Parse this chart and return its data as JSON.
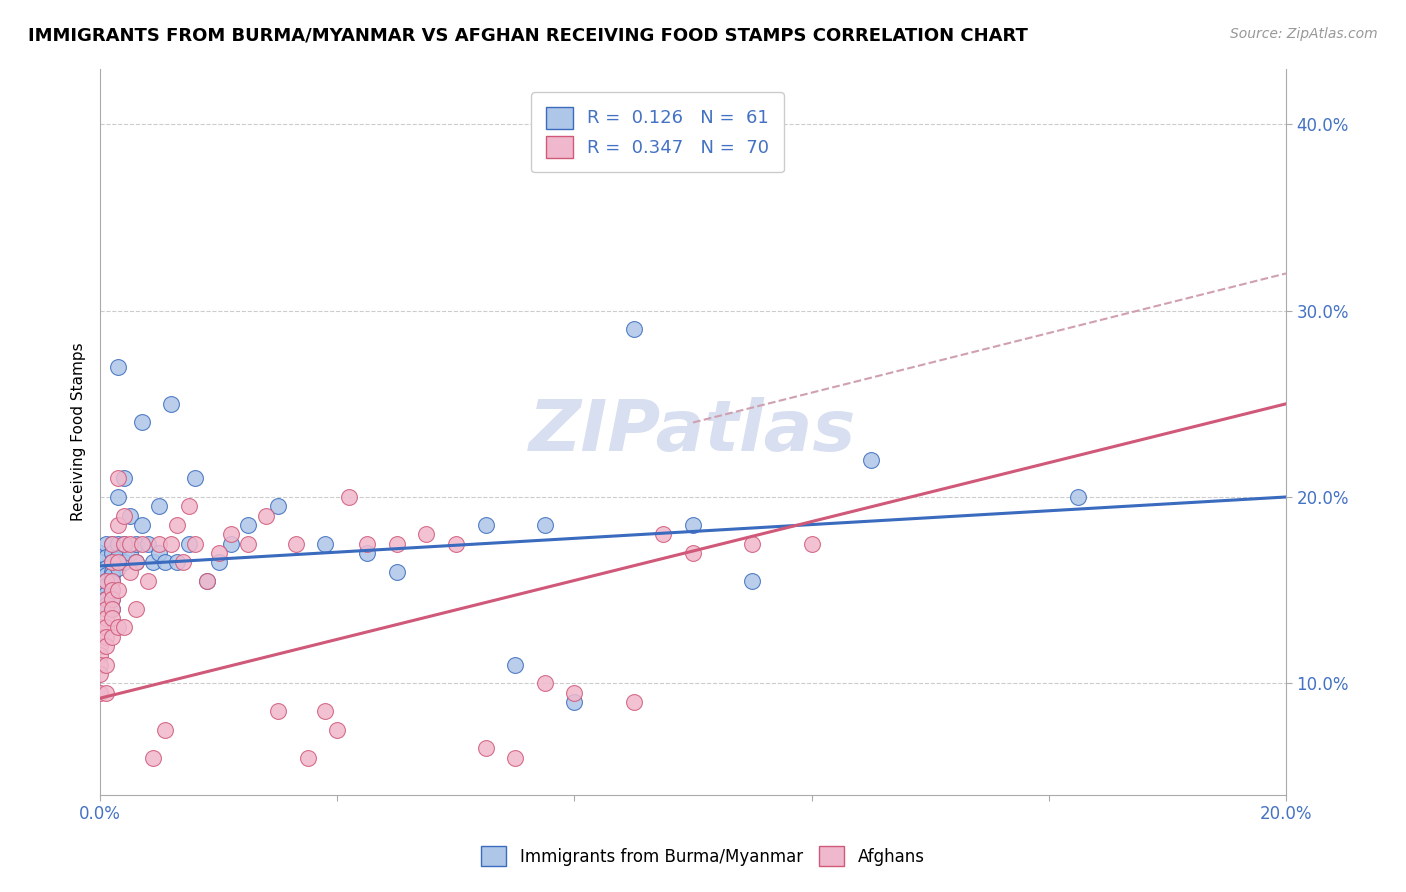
{
  "title": "IMMIGRANTS FROM BURMA/MYANMAR VS AFGHAN RECEIVING FOOD STAMPS CORRELATION CHART",
  "source": "Source: ZipAtlas.com",
  "ylabel": "Receiving Food Stamps",
  "yticks": [
    0.1,
    0.2,
    0.3,
    0.4
  ],
  "ytick_labels": [
    "10.0%",
    "20.0%",
    "30.0%",
    "40.0%"
  ],
  "xlim": [
    0.0,
    0.2
  ],
  "ylim": [
    0.04,
    0.43
  ],
  "color_blue": "#aec6e8",
  "color_pink": "#f0b8cc",
  "line_blue": "#3a6bbf",
  "line_pink": "#d05878",
  "dashed_color": "#d0a0b0",
  "watermark_color": "#d8dff0",
  "blue_scatter_x": [
    0.0,
    0.0,
    0.0,
    0.001,
    0.001,
    0.001,
    0.001,
    0.001,
    0.001,
    0.001,
    0.001,
    0.001,
    0.002,
    0.002,
    0.002,
    0.002,
    0.002,
    0.002,
    0.002,
    0.002,
    0.002,
    0.003,
    0.003,
    0.003,
    0.003,
    0.003,
    0.004,
    0.004,
    0.004,
    0.005,
    0.005,
    0.006,
    0.006,
    0.007,
    0.007,
    0.008,
    0.009,
    0.01,
    0.01,
    0.011,
    0.012,
    0.013,
    0.015,
    0.016,
    0.018,
    0.02,
    0.022,
    0.025,
    0.03,
    0.038,
    0.045,
    0.05,
    0.065,
    0.07,
    0.075,
    0.08,
    0.09,
    0.1,
    0.11,
    0.13,
    0.165
  ],
  "blue_scatter_y": [
    0.17,
    0.165,
    0.16,
    0.175,
    0.168,
    0.162,
    0.158,
    0.155,
    0.152,
    0.148,
    0.145,
    0.142,
    0.175,
    0.17,
    0.165,
    0.16,
    0.158,
    0.155,
    0.15,
    0.145,
    0.14,
    0.27,
    0.2,
    0.175,
    0.168,
    0.162,
    0.21,
    0.175,
    0.165,
    0.19,
    0.17,
    0.175,
    0.165,
    0.24,
    0.185,
    0.175,
    0.165,
    0.17,
    0.195,
    0.165,
    0.25,
    0.165,
    0.175,
    0.21,
    0.155,
    0.165,
    0.175,
    0.185,
    0.195,
    0.175,
    0.17,
    0.16,
    0.185,
    0.11,
    0.185,
    0.09,
    0.29,
    0.185,
    0.155,
    0.22,
    0.2
  ],
  "pink_scatter_x": [
    0.0,
    0.0,
    0.0,
    0.0,
    0.0,
    0.0,
    0.0,
    0.001,
    0.001,
    0.001,
    0.001,
    0.001,
    0.001,
    0.001,
    0.001,
    0.001,
    0.002,
    0.002,
    0.002,
    0.002,
    0.002,
    0.002,
    0.002,
    0.002,
    0.003,
    0.003,
    0.003,
    0.003,
    0.003,
    0.004,
    0.004,
    0.004,
    0.005,
    0.005,
    0.006,
    0.006,
    0.007,
    0.008,
    0.009,
    0.01,
    0.011,
    0.012,
    0.013,
    0.014,
    0.015,
    0.016,
    0.018,
    0.02,
    0.022,
    0.025,
    0.028,
    0.03,
    0.033,
    0.035,
    0.038,
    0.04,
    0.042,
    0.045,
    0.05,
    0.055,
    0.06,
    0.065,
    0.07,
    0.075,
    0.08,
    0.09,
    0.095,
    0.1,
    0.11,
    0.12
  ],
  "pink_scatter_y": [
    0.13,
    0.125,
    0.12,
    0.115,
    0.11,
    0.105,
    0.095,
    0.155,
    0.145,
    0.14,
    0.135,
    0.13,
    0.125,
    0.12,
    0.11,
    0.095,
    0.175,
    0.165,
    0.155,
    0.15,
    0.145,
    0.14,
    0.135,
    0.125,
    0.21,
    0.185,
    0.165,
    0.15,
    0.13,
    0.19,
    0.175,
    0.13,
    0.175,
    0.16,
    0.165,
    0.14,
    0.175,
    0.155,
    0.06,
    0.175,
    0.075,
    0.175,
    0.185,
    0.165,
    0.195,
    0.175,
    0.155,
    0.17,
    0.18,
    0.175,
    0.19,
    0.085,
    0.175,
    0.06,
    0.085,
    0.075,
    0.2,
    0.175,
    0.175,
    0.18,
    0.175,
    0.065,
    0.06,
    0.1,
    0.095,
    0.09,
    0.18,
    0.17,
    0.175,
    0.175
  ],
  "blue_line_x0": 0.0,
  "blue_line_y0": 0.163,
  "blue_line_x1": 0.2,
  "blue_line_y1": 0.2,
  "pink_line_x0": 0.0,
  "pink_line_y0": 0.092,
  "pink_line_x1": 0.2,
  "pink_line_y1": 0.25,
  "dashed_line_x0": 0.1,
  "dashed_line_y0": 0.24,
  "dashed_line_x1": 0.2,
  "dashed_line_y1": 0.32
}
